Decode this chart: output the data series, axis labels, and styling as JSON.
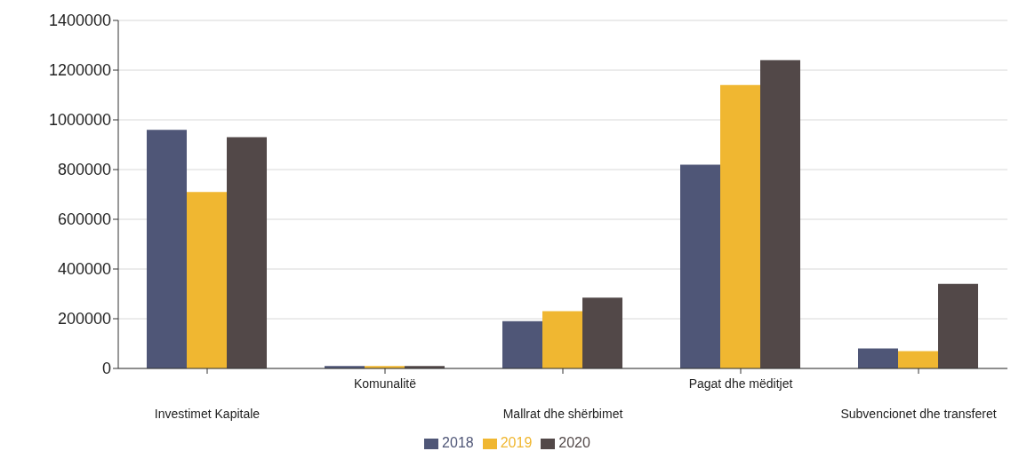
{
  "chart_data": {
    "type": "bar",
    "categories": [
      "Investimet Kapitale",
      "Komunalitë",
      "Mallrat dhe shërbimet",
      "Pagat dhe mëditjet",
      "Subvencionet dhe transferet"
    ],
    "series": [
      {
        "name": "2018",
        "color": "#4f5677",
        "values": [
          960000,
          10000,
          190000,
          820000,
          80000
        ]
      },
      {
        "name": "2019",
        "color": "#f0b731",
        "values": [
          710000,
          10000,
          230000,
          1140000,
          70000
        ]
      },
      {
        "name": "2020",
        "color": "#524848",
        "values": [
          930000,
          10000,
          285000,
          1240000,
          340000
        ]
      }
    ],
    "ylim": [
      0,
      1400000
    ],
    "yticks": [
      0,
      200000,
      400000,
      600000,
      800000,
      1000000,
      1200000,
      1400000
    ],
    "grid": "y",
    "legend": "bottom"
  }
}
